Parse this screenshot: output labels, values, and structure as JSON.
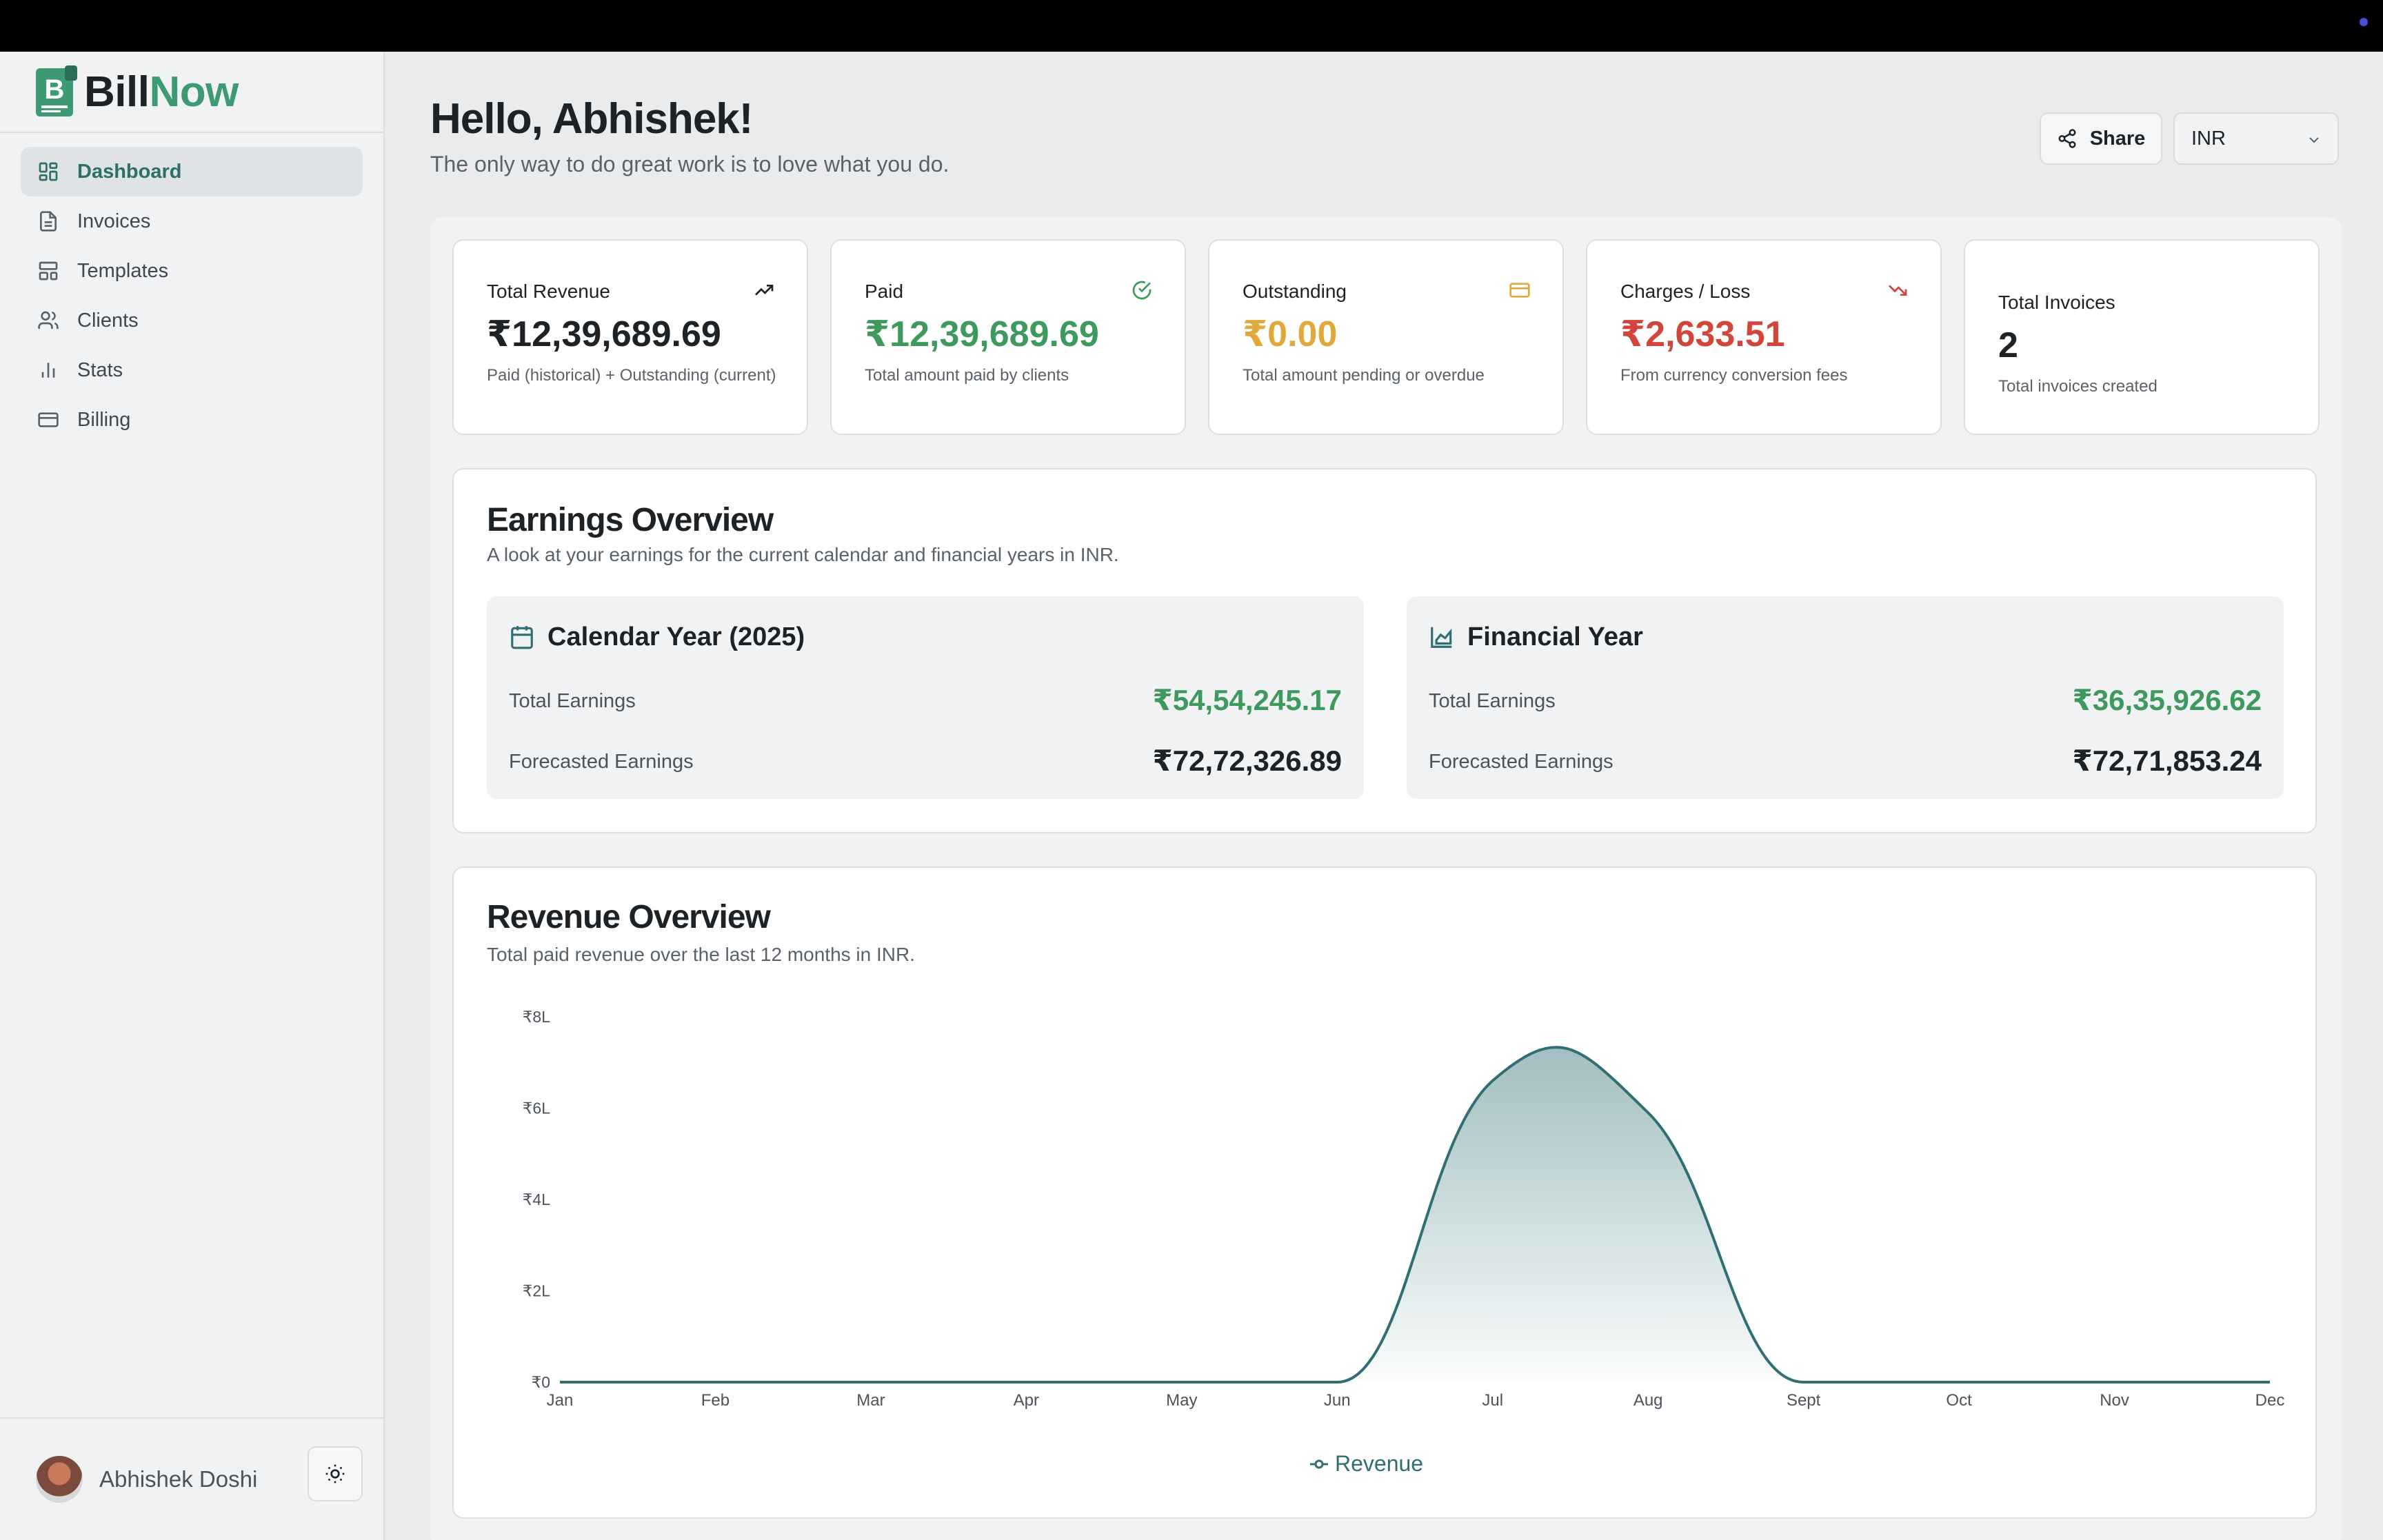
{
  "app": {
    "brand_part1": "Bill",
    "brand_part2": "Now"
  },
  "sidebar": {
    "items": [
      {
        "label": "Dashboard",
        "icon": "dashboard-icon",
        "active": true
      },
      {
        "label": "Invoices",
        "icon": "invoice-icon",
        "active": false
      },
      {
        "label": "Templates",
        "icon": "templates-icon",
        "active": false
      },
      {
        "label": "Clients",
        "icon": "clients-icon",
        "active": false
      },
      {
        "label": "Stats",
        "icon": "stats-icon",
        "active": false
      },
      {
        "label": "Billing",
        "icon": "billing-icon",
        "active": false
      }
    ],
    "user_name": "Abhishek Doshi"
  },
  "header": {
    "greeting": "Hello, Abhishek!",
    "quote": "The only way to do great work is to love what you do.",
    "share_label": "Share",
    "currency": "INR"
  },
  "stats": [
    {
      "label": "Total Revenue",
      "value": "₹12,39,689.69",
      "desc": "Paid (historical) + Outstanding (current)",
      "color": "#1d2226",
      "icon": "trending-up-icon"
    },
    {
      "label": "Paid",
      "value": "₹12,39,689.69",
      "desc": "Total amount paid by clients",
      "color": "#3e9a5c",
      "icon": "check-circle-icon"
    },
    {
      "label": "Outstanding",
      "value": "₹0.00",
      "desc": "Total amount pending or overdue",
      "color": "#e1a93a",
      "icon": "credit-card-icon"
    },
    {
      "label": "Charges / Loss",
      "value": "₹2,633.51",
      "desc": "From currency conversion fees",
      "color": "#d2453a",
      "icon": "trending-down-icon"
    },
    {
      "label": "Total Invoices",
      "value": "2",
      "desc": "Total invoices created",
      "color": "#1d2226",
      "icon": ""
    }
  ],
  "earnings": {
    "title": "Earnings Overview",
    "subtitle": "A look at your earnings for the current calendar and financial years in INR.",
    "calendar": {
      "title": "Calendar Year (2025)",
      "total_label": "Total Earnings",
      "total_value": "₹54,54,245.17",
      "forecast_label": "Forecasted Earnings",
      "forecast_value": "₹72,72,326.89"
    },
    "financial": {
      "title": "Financial Year",
      "total_label": "Total Earnings",
      "total_value": "₹36,35,926.62",
      "forecast_label": "Forecasted Earnings",
      "forecast_value": "₹72,71,853.24"
    },
    "colors": {
      "positive": "#3e9a5c",
      "neutral": "#1d2226"
    }
  },
  "revenue": {
    "title": "Revenue Overview",
    "subtitle": "Total paid revenue over the last 12 months in INR.",
    "legend": "Revenue"
  },
  "chart_data": {
    "type": "area",
    "title": "Revenue Overview",
    "categories": [
      "Jan",
      "Feb",
      "Mar",
      "Apr",
      "May",
      "Jun",
      "Jul",
      "Aug",
      "Sept",
      "Oct",
      "Nov",
      "Dec"
    ],
    "series": [
      {
        "name": "Revenue",
        "values": [
          0,
          0,
          0,
          0,
          0,
          0,
          660000,
          590000,
          0,
          0,
          0,
          0
        ],
        "color": "#2f6f73"
      }
    ],
    "y_ticks": [
      0,
      200000,
      400000,
      600000,
      800000
    ],
    "y_tick_labels": [
      "₹0",
      "₹2L",
      "₹4L",
      "₹6L",
      "₹8L"
    ],
    "ylim": [
      0,
      800000
    ],
    "grid": false,
    "legend_position": "bottom-center"
  }
}
